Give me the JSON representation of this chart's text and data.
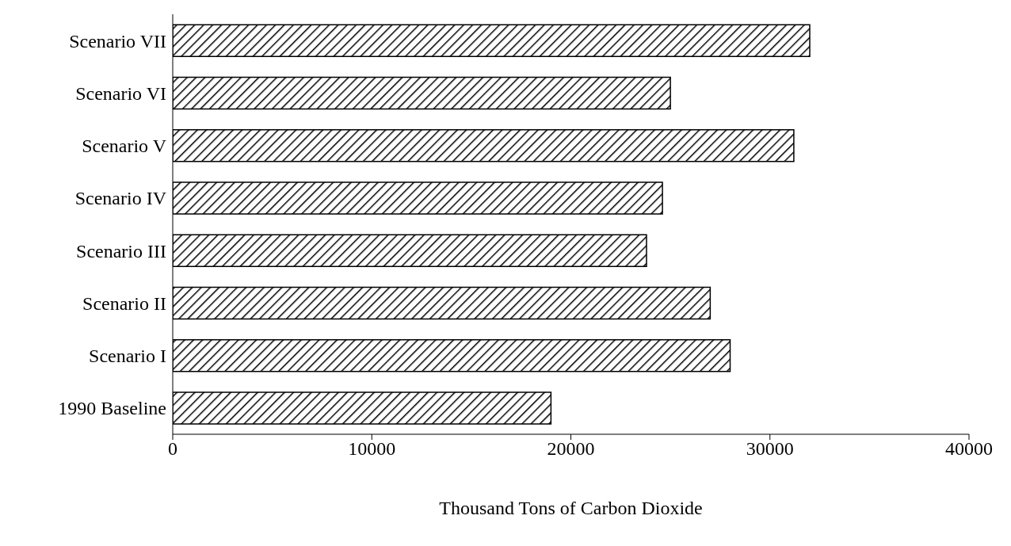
{
  "chart_data": {
    "type": "bar",
    "orientation": "horizontal",
    "xlabel": "Thousand Tons of Carbon Dioxide",
    "categories": [
      "Scenario VII",
      "Scenario VI",
      "Scenario V",
      "Scenario IV",
      "Scenario III",
      "Scenario II",
      "Scenario I",
      "1990 Baseline"
    ],
    "values": [
      32000,
      25000,
      31200,
      24600,
      23800,
      27000,
      28000,
      19000
    ],
    "color": "#000000",
    "xlim": [
      0,
      40000
    ],
    "xticks": [
      0,
      10000,
      20000,
      30000,
      40000
    ],
    "grid": false,
    "legend": false
  }
}
